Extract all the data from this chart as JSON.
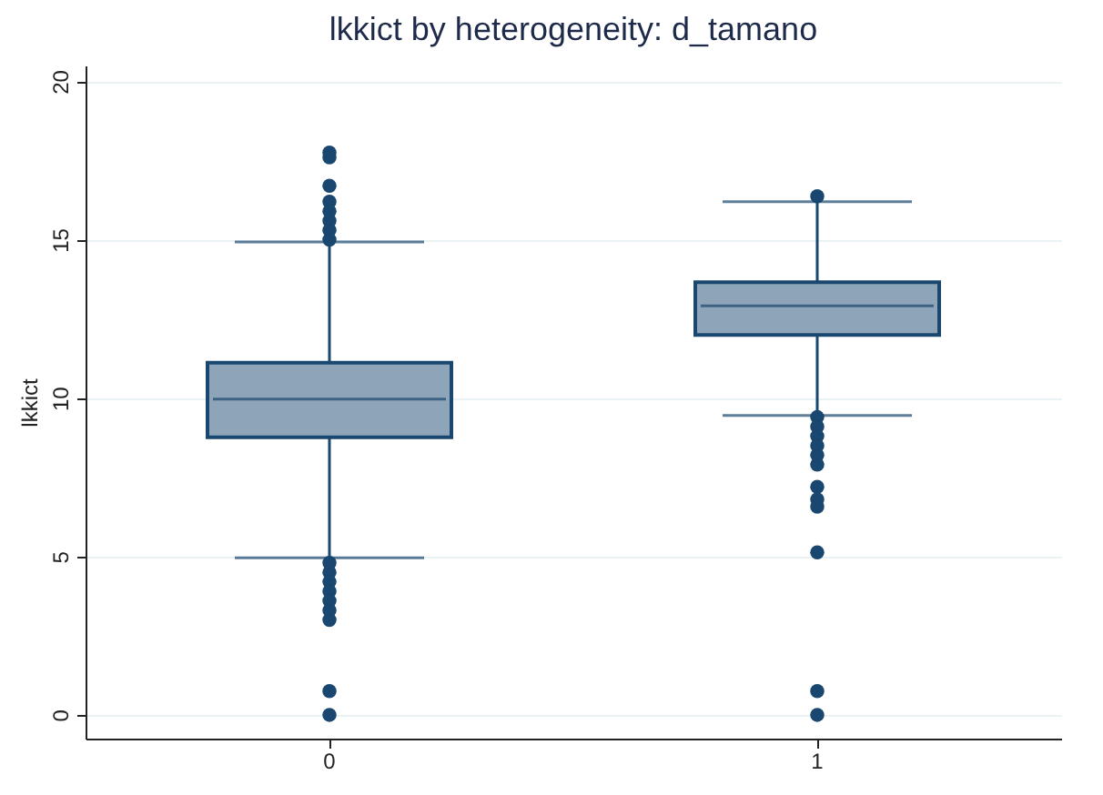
{
  "chart_data": {
    "type": "box",
    "title": "lkkict by heterogeneity: d_tamano",
    "ylabel": "lkkict",
    "categories": [
      "0",
      "1"
    ],
    "boxes": [
      {
        "low": 4.96,
        "q1": 8.76,
        "median": 9.97,
        "q3": 11.12,
        "high": 14.93,
        "outliers": [
          17.75,
          17.6,
          16.7,
          16.2,
          15.9,
          15.6,
          15.3,
          15.0,
          4.8,
          4.5,
          4.2,
          3.9,
          3.6,
          3.3,
          3.0,
          0.75,
          0
        ]
      },
      {
        "low": 9.45,
        "q1": 11.99,
        "median": 12.91,
        "q3": 13.66,
        "high": 16.2,
        "outliers": [
          16.37,
          9.4,
          9.1,
          8.8,
          8.5,
          8.2,
          7.9,
          7.2,
          6.8,
          6.57,
          5.13,
          0.75,
          0
        ]
      }
    ],
    "color": "#8ea4b8",
    "ylim": [
      -0.75,
      20.5
    ],
    "yticks": [
      0,
      5,
      10,
      15,
      20
    ],
    "grid": "y"
  }
}
